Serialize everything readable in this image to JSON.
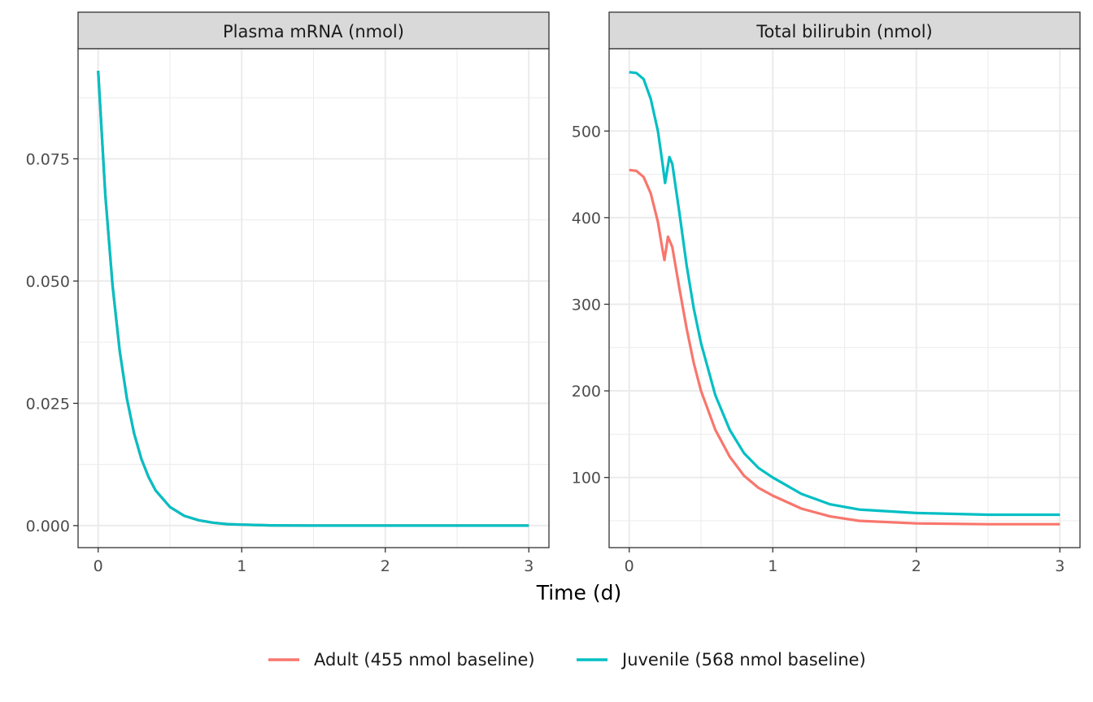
{
  "chart_data": {
    "type": "line",
    "xlabel": "Time (d)",
    "legend_position": "bottom",
    "grid": true,
    "legend": [
      {
        "name": "Adult (455 nmol baseline)",
        "color": "#F8766D"
      },
      {
        "name": "Juvenile (568 nmol baseline)",
        "color": "#00BFC4"
      }
    ],
    "panels": [
      {
        "title": "Plasma mRNA (nmol)",
        "xlim": [
          -0.14,
          3.14
        ],
        "ylim": [
          -0.0045,
          0.0975
        ],
        "x_ticks": [
          {
            "v": 0,
            "label": "0"
          },
          {
            "v": 1,
            "label": "1"
          },
          {
            "v": 2,
            "label": "2"
          },
          {
            "v": 3,
            "label": "3"
          }
        ],
        "y_ticks": [
          {
            "v": 0,
            "label": "0.000"
          },
          {
            "v": 0.025,
            "label": "0.025"
          },
          {
            "v": 0.05,
            "label": "0.050"
          },
          {
            "v": 0.075,
            "label": "0.075"
          }
        ],
        "series": [
          {
            "name": "Adult (455 nmol baseline)",
            "color": "#F8766D",
            "x": [
              0,
              0.05,
              0.1,
              0.15,
              0.2,
              0.25,
              0.3,
              0.35,
              0.4,
              0.5,
              0.6,
              0.7,
              0.8,
              0.9,
              1.0,
              1.2,
              1.5,
              2.0,
              2.5,
              3.0
            ],
            "y": [
              0.093,
              0.0676,
              0.0491,
              0.0357,
              0.026,
              0.0189,
              0.0137,
              0.01,
              0.0072,
              0.0038,
              0.002,
              0.0011,
              0.0006,
              0.0003,
              0.0002,
              5e-05,
              0.0,
              0.0,
              0.0,
              0.0
            ]
          },
          {
            "name": "Juvenile (568 nmol baseline)",
            "color": "#00BFC4",
            "x": [
              0,
              0.05,
              0.1,
              0.15,
              0.2,
              0.25,
              0.3,
              0.35,
              0.4,
              0.5,
              0.6,
              0.7,
              0.8,
              0.9,
              1.0,
              1.2,
              1.5,
              2.0,
              2.5,
              3.0
            ],
            "y": [
              0.093,
              0.0676,
              0.0491,
              0.0357,
              0.026,
              0.0189,
              0.0137,
              0.01,
              0.0072,
              0.0038,
              0.002,
              0.0011,
              0.0006,
              0.0003,
              0.0002,
              5e-05,
              0.0,
              0.0,
              0.0,
              0.0
            ]
          }
        ]
      },
      {
        "title": "Total bilirubin (nmol)",
        "xlim": [
          -0.14,
          3.14
        ],
        "ylim": [
          19,
          595
        ],
        "x_ticks": [
          {
            "v": 0,
            "label": "0"
          },
          {
            "v": 1,
            "label": "1"
          },
          {
            "v": 2,
            "label": "2"
          },
          {
            "v": 3,
            "label": "3"
          }
        ],
        "y_ticks": [
          {
            "v": 100,
            "label": "100"
          },
          {
            "v": 200,
            "label": "200"
          },
          {
            "v": 300,
            "label": "300"
          },
          {
            "v": 400,
            "label": "400"
          },
          {
            "v": 500,
            "label": "500"
          }
        ],
        "series": [
          {
            "name": "Adult (455 nmol baseline)",
            "color": "#F8766D",
            "x": [
              0,
              0.05,
              0.1,
              0.15,
              0.2,
              0.23,
              0.245,
              0.27,
              0.3,
              0.35,
              0.4,
              0.45,
              0.5,
              0.6,
              0.7,
              0.8,
              0.9,
              1.0,
              1.2,
              1.4,
              1.6,
              2.0,
              2.5,
              3.0
            ],
            "y": [
              455,
              454,
              447,
              428,
              395,
              365,
              351,
              378,
              366,
              318,
              272,
              232,
              200,
              155,
              124,
              102,
              88,
              79,
              64,
              55,
              50,
              47,
              46,
              46
            ]
          },
          {
            "name": "Juvenile (568 nmol baseline)",
            "color": "#00BFC4",
            "x": [
              0,
              0.05,
              0.1,
              0.15,
              0.2,
              0.23,
              0.25,
              0.28,
              0.3,
              0.35,
              0.4,
              0.45,
              0.5,
              0.6,
              0.7,
              0.8,
              0.9,
              1.0,
              1.2,
              1.4,
              1.6,
              2.0,
              2.5,
              3.0
            ],
            "y": [
              568,
              567,
              560,
              537,
              500,
              465,
              440,
              470,
              462,
              405,
              345,
              295,
              255,
              195,
              155,
              128,
              111,
              100,
              81,
              69,
              63,
              59,
              57,
              57
            ]
          }
        ]
      }
    ]
  }
}
